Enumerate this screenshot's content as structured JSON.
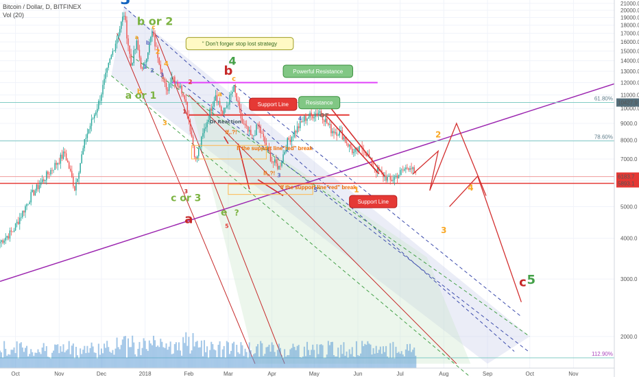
{
  "header": {
    "symbol_line": "Bitcoin / Dollar, D, BITFINEX",
    "volume_label": "Vol (20)"
  },
  "colors": {
    "up": "#26a69a",
    "down": "#ef5350",
    "volume": "#5b9bd5",
    "purple_trend": "#9c27b0",
    "magenta_resistance": "#e040fb",
    "red_support": "#e53935",
    "fib_line": "#80cbc4"
  },
  "chart_data": {
    "type": "candlestick",
    "y_axis": {
      "scale": "log",
      "ylim": [
        1600,
        21500
      ],
      "ticks": [
        2000,
        3000,
        4000,
        5000,
        6000,
        7000,
        8000,
        9000,
        10000,
        11000,
        12000,
        13000,
        14000,
        15000,
        16000,
        17000,
        18000,
        19000,
        20000,
        21000
      ],
      "tick_labels": [
        "2000.0",
        "3000.0",
        "4000.0",
        "5000.0",
        "6000.0",
        "7000.0",
        "8000.0",
        "9000.0",
        "10000.0",
        "11000.0",
        "12000.0",
        "13000.0",
        "14000.0",
        "15000.0",
        "16000.0",
        "17000.0",
        "18000.0",
        "19000.0",
        "20000.0",
        "21000.0"
      ]
    },
    "x_axis": {
      "xlim": [
        "2017-09-20",
        "2018-11-30"
      ],
      "ticks": [
        {
          "date": "2017-10-01",
          "label": "Oct"
        },
        {
          "date": "2017-11-01",
          "label": "Nov"
        },
        {
          "date": "2017-12-01",
          "label": "Dec"
        },
        {
          "date": "2018-01-01",
          "label": "2018"
        },
        {
          "date": "2018-02-01",
          "label": "Feb"
        },
        {
          "date": "2018-03-01",
          "label": "Mar"
        },
        {
          "date": "2018-04-01",
          "label": "Apr"
        },
        {
          "date": "2018-05-01",
          "label": "May"
        },
        {
          "date": "2018-06-01",
          "label": "Jun"
        },
        {
          "date": "2018-07-01",
          "label": "Jul"
        },
        {
          "date": "2018-08-01",
          "label": "Aug"
        },
        {
          "date": "2018-09-01",
          "label": "Sep"
        },
        {
          "date": "2018-10-01",
          "label": "Oct"
        },
        {
          "date": "2018-11-01",
          "label": "Nov"
        }
      ]
    },
    "price_path": [
      [
        "2017-09-20",
        3900
      ],
      [
        "2017-09-29",
        4200
      ],
      [
        "2017-10-12",
        5400
      ],
      [
        "2017-10-20",
        6000
      ],
      [
        "2017-11-05",
        7300
      ],
      [
        "2017-11-12",
        5700
      ],
      [
        "2017-11-20",
        8200
      ],
      [
        "2017-11-29",
        10400
      ],
      [
        "2017-12-07",
        14000
      ],
      [
        "2017-12-12",
        16500
      ],
      [
        "2017-12-17",
        19500
      ],
      [
        "2017-12-22",
        13600
      ],
      [
        "2017-12-26",
        15800
      ],
      [
        "2017-12-30",
        13000
      ],
      [
        "2018-01-06",
        17000
      ],
      [
        "2018-01-12",
        13500
      ],
      [
        "2018-01-16",
        11200
      ],
      [
        "2018-01-20",
        12700
      ],
      [
        "2018-01-29",
        11000
      ],
      [
        "2018-02-06",
        6900
      ],
      [
        "2018-02-12",
        8600
      ],
      [
        "2018-02-20",
        11100
      ],
      [
        "2018-02-25",
        9600
      ],
      [
        "2018-03-05",
        11500
      ],
      [
        "2018-03-11",
        9000
      ],
      [
        "2018-03-18",
        8100
      ],
      [
        "2018-03-22",
        8900
      ],
      [
        "2018-04-01",
        6900
      ],
      [
        "2018-04-06",
        6600
      ],
      [
        "2018-04-12",
        7900
      ],
      [
        "2018-04-24",
        9300
      ],
      [
        "2018-05-05",
        9800
      ],
      [
        "2018-05-13",
        8600
      ],
      [
        "2018-05-20",
        8400
      ],
      [
        "2018-05-29",
        7300
      ],
      [
        "2018-06-05",
        7600
      ],
      [
        "2018-06-12",
        6600
      ],
      [
        "2018-06-24",
        6000
      ],
      [
        "2018-06-30",
        6300
      ],
      [
        "2018-07-06",
        6600
      ],
      [
        "2018-07-08",
        6700
      ],
      [
        "2018-07-12",
        6183.7
      ]
    ],
    "horizontal_levels": [
      {
        "name": "Powerful Resistance",
        "value": 12000,
        "color": "#e040fb"
      },
      {
        "name": "Support Line",
        "value": 9550,
        "color": "#e53935"
      },
      {
        "name": "Support Line",
        "value": 5893.1,
        "color": "#e53935"
      },
      {
        "name": "",
        "value": 6183.7,
        "color": "#e53935"
      }
    ],
    "price_tags": [
      {
        "value": 10427.9,
        "label": "10427.9",
        "color": "#546e7a"
      },
      {
        "value": 6183.7,
        "label": "6183.7",
        "color": "#e53935"
      },
      {
        "value": 5893.1,
        "label": "5893.1",
        "color": "#e53935"
      }
    ],
    "fib_levels": [
      {
        "label": "61.80%",
        "value": 10427.9
      },
      {
        "label": "78.60%",
        "value": 7950
      },
      {
        "label": "112.90%",
        "value": 1720
      }
    ],
    "wave_labels": [
      {
        "text": "3",
        "date": "2017-12-18",
        "price": 20900,
        "color": "#1565c0",
        "size": 22
      },
      {
        "text": "b or 2",
        "date": "2018-01-08",
        "price": 18000,
        "color": "#7cb342",
        "size": 16
      },
      {
        "text": "a or 1",
        "date": "2017-12-29",
        "price": 10700,
        "color": "#7cb342",
        "size": 14
      },
      {
        "text": "c or 3",
        "date": "2018-01-30",
        "price": 5200,
        "color": "#7cb342",
        "size": 14
      },
      {
        "text": "a",
        "date": "2018-02-01",
        "price": 4450,
        "color": "#c62828",
        "size": 18
      },
      {
        "text": "b",
        "date": "2018-03-01",
        "price": 12700,
        "color": "#c62828",
        "size": 18
      },
      {
        "text": "4",
        "date": "2018-03-04",
        "price": 13600,
        "color": "#43a047",
        "size": 16
      },
      {
        "text": "e",
        "date": "2018-02-26",
        "price": 4700,
        "color": "#7cb342",
        "size": 14
      },
      {
        "text": "?",
        "date": "2018-03-07",
        "price": 4700,
        "color": "#7cb342",
        "size": 12
      },
      {
        "text": "or",
        "date": "2018-05-08",
        "price": 9400,
        "color": "#8d6e63",
        "size": 11
      },
      {
        "text": "2",
        "date": "2018-07-28",
        "price": 8150,
        "color": "#f9a825",
        "size": 12
      },
      {
        "text": "4",
        "date": "2018-08-20",
        "price": 5600,
        "color": "#f9a825",
        "size": 12
      },
      {
        "text": "3",
        "date": "2018-08-01",
        "price": 4150,
        "color": "#f9a825",
        "size": 12
      },
      {
        "text": "c",
        "date": "2018-09-26",
        "price": 2850,
        "color": "#c62828",
        "size": 18
      },
      {
        "text": "5",
        "date": "2018-10-02",
        "price": 2900,
        "color": "#43a047",
        "size": 18
      },
      {
        "text": "1",
        "date": "2018-05-31",
        "price": 5540,
        "color": "#f9a825",
        "size": 11
      },
      {
        "text": "5",
        "date": "2018-05-02",
        "price": 5550,
        "color": "#5c6bc0",
        "size": 8
      },
      {
        "text": "3",
        "date": "2018-04-06",
        "price": 6150,
        "color": "#5c6bc0",
        "size": 8
      },
      {
        "text": "3",
        "date": "2018-01-30",
        "price": 5500,
        "color": "#c62828",
        "size": 8
      },
      {
        "text": "5",
        "date": "2018-02-28",
        "price": 4300,
        "color": "#e53935",
        "size": 8
      },
      {
        "text": "1",
        "date": "2018-01-29",
        "price": 9650,
        "color": "#c62828",
        "size": 8
      },
      {
        "text": "2",
        "date": "2018-02-02",
        "price": 11900,
        "color": "#e53935",
        "size": 9
      },
      {
        "text": "a",
        "date": "2017-12-26",
        "price": 16300,
        "color": "#f9a825",
        "size": 8
      },
      {
        "text": "c",
        "date": "2018-01-07",
        "price": 17500,
        "color": "#f9a825",
        "size": 9
      },
      {
        "text": "2",
        "date": "2018-01-10",
        "price": 14700,
        "color": "#f9a825",
        "size": 10
      },
      {
        "text": "4",
        "date": "2018-01-16",
        "price": 13500,
        "color": "#f9a825",
        "size": 10
      },
      {
        "text": "b",
        "date": "2017-12-28",
        "price": 11100,
        "color": "#f9a825",
        "size": 10
      },
      {
        "text": "3",
        "date": "2018-01-15",
        "price": 8900,
        "color": "#f9a825",
        "size": 10
      },
      {
        "text": "b",
        "date": "2018-01-03",
        "price": 15700,
        "color": "#5c6bc0",
        "size": 8
      },
      {
        "text": "1",
        "date": "2018-01-01",
        "price": 13250,
        "color": "#5c6bc0",
        "size": 8
      },
      {
        "text": "2",
        "date": "2018-01-06",
        "price": 12900,
        "color": "#5c6bc0",
        "size": 8
      },
      {
        "text": "3",
        "date": "2018-01-13",
        "price": 12500,
        "color": "#5c6bc0",
        "size": 8
      },
      {
        "text": "c",
        "date": "2018-03-05",
        "price": 12150,
        "color": "#f9a825",
        "size": 10
      },
      {
        "text": "a",
        "date": "2018-02-23",
        "price": 10900,
        "color": "#f9a825",
        "size": 10
      },
      {
        "text": "4",
        "date": "2018-04-21",
        "price": 9200,
        "color": "#5c6bc0",
        "size": 8
      },
      {
        "text": "Or Reaction",
        "date": "2018-02-27",
        "price": 9000,
        "color": "#455a64",
        "size": 7
      }
    ],
    "callouts": [
      {
        "text": "Don't forger stop lost strategy",
        "date": "2018-01-30",
        "price": 15800,
        "bg": "#fff9c4",
        "border": "#9e9d24",
        "color": "#33691e"
      },
      {
        "text": "Powerful Resistance",
        "date": "2018-04-09",
        "price": 13000,
        "bg": "#81c784",
        "border": "#388e3c",
        "color": "#ffffff"
      },
      {
        "text": "Support Line",
        "date": "2018-03-16",
        "price": 10300,
        "bg": "#e53935",
        "border": "#b71c1c",
        "color": "#ffffff"
      },
      {
        "text": "Resistance",
        "date": "2018-04-20",
        "price": 10420,
        "bg": "#81c784",
        "border": "#388e3c",
        "color": "#ffffff"
      },
      {
        "text": "Support Line",
        "date": "2018-05-26",
        "price": 5180,
        "bg": "#e53935",
        "border": "#b71c1c",
        "color": "#ffffff"
      }
    ],
    "annotations": [
      {
        "text": "If,.?!",
        "date": "2018-02-27",
        "price": 8350,
        "color": "#ef6c00",
        "size": 11
      },
      {
        "text": "If the support line\"red\" break",
        "date": "2018-03-07",
        "price": 7450,
        "color": "#ef6c00",
        "size": 8
      },
      {
        "text": "If,.?!",
        "date": "2018-03-26",
        "price": 6250,
        "color": "#ef6c00",
        "size": 11
      },
      {
        "text": "If the support line\"red\" break",
        "date": "2018-04-07",
        "price": 5650,
        "color": "#ef6c00",
        "size": 8
      }
    ]
  }
}
